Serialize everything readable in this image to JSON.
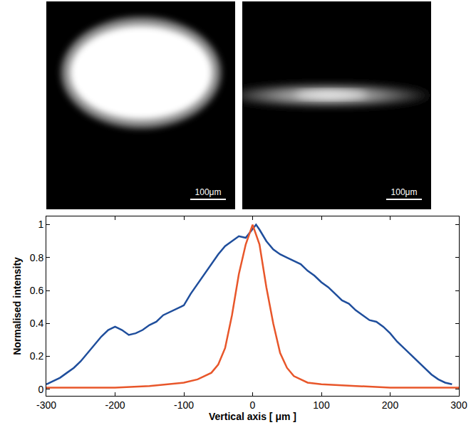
{
  "panels": [
    {
      "scale_bar": "100μm"
    },
    {
      "scale_bar": "100μm"
    }
  ],
  "chart_data": {
    "type": "line",
    "x_label": "Vertical axis [ μm ]",
    "y_label": "Normalised intensity",
    "xlim": [
      -300,
      300
    ],
    "xticks": [
      -300,
      -200,
      -100,
      0,
      100,
      200,
      300
    ],
    "ylim": [
      -0.04,
      1.05
    ],
    "yticks": [
      0,
      0.2,
      0.4,
      0.6,
      0.8,
      1
    ],
    "grid": false,
    "series": [
      {
        "color": "#1f4e9c",
        "x": [
          -300,
          -290,
          -280,
          -270,
          -260,
          -250,
          -240,
          -230,
          -220,
          -210,
          -200,
          -190,
          -180,
          -170,
          -160,
          -150,
          -140,
          -130,
          -120,
          -110,
          -100,
          -90,
          -80,
          -70,
          -60,
          -50,
          -40,
          -30,
          -20,
          -10,
          0,
          5,
          10,
          20,
          30,
          40,
          50,
          60,
          70,
          80,
          90,
          100,
          110,
          120,
          130,
          140,
          150,
          160,
          170,
          180,
          190,
          200,
          210,
          220,
          230,
          240,
          250,
          260,
          270,
          280,
          290
        ],
        "values": [
          0.03,
          0.05,
          0.07,
          0.1,
          0.13,
          0.17,
          0.22,
          0.27,
          0.32,
          0.36,
          0.38,
          0.36,
          0.33,
          0.34,
          0.36,
          0.39,
          0.41,
          0.45,
          0.47,
          0.49,
          0.51,
          0.58,
          0.64,
          0.7,
          0.76,
          0.82,
          0.87,
          0.9,
          0.93,
          0.92,
          0.97,
          1.0,
          0.97,
          0.9,
          0.85,
          0.82,
          0.8,
          0.78,
          0.76,
          0.72,
          0.69,
          0.65,
          0.62,
          0.58,
          0.54,
          0.52,
          0.48,
          0.45,
          0.42,
          0.41,
          0.38,
          0.34,
          0.29,
          0.25,
          0.21,
          0.17,
          0.13,
          0.09,
          0.06,
          0.04,
          0.03
        ]
      },
      {
        "color": "#e8562a",
        "x": [
          -300,
          -250,
          -200,
          -150,
          -100,
          -80,
          -60,
          -50,
          -40,
          -30,
          -20,
          -10,
          0,
          10,
          20,
          30,
          40,
          50,
          60,
          80,
          100,
          150,
          200,
          250,
          300
        ],
        "values": [
          0.01,
          0.01,
          0.01,
          0.02,
          0.04,
          0.06,
          0.1,
          0.15,
          0.25,
          0.45,
          0.7,
          0.88,
          1.0,
          0.88,
          0.62,
          0.4,
          0.22,
          0.13,
          0.08,
          0.04,
          0.03,
          0.02,
          0.01,
          0.01,
          0.01
        ]
      }
    ]
  }
}
